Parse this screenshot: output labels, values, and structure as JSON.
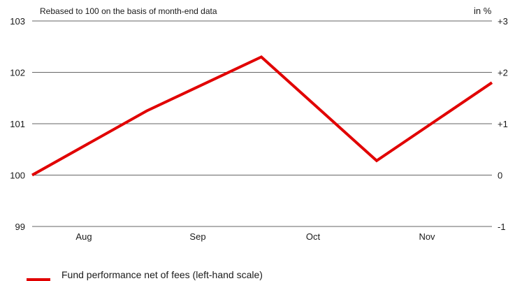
{
  "chart_data": {
    "type": "line",
    "subtitle": "Rebased to 100 on the basis of month-end data",
    "right_axis_unit": "in %",
    "left_ticks": [
      "103",
      "102",
      "101",
      "100",
      "99"
    ],
    "right_ticks": [
      "+3",
      "+2",
      "+1",
      "0",
      "-1"
    ],
    "left_tick_values": [
      103,
      102,
      101,
      100,
      99
    ],
    "x_categories": [
      "Aug",
      "Sep",
      "Oct",
      "Nov"
    ],
    "ylim": [
      99,
      103
    ],
    "grid": true,
    "legend_position": "bottom-left",
    "series": [
      {
        "name": "Fund performance net of fees (left-hand scale)",
        "color": "#e10000",
        "x": [
          0,
          1,
          2,
          3,
          4
        ],
        "values": [
          100.0,
          101.25,
          102.3,
          100.28,
          101.8
        ]
      }
    ]
  }
}
